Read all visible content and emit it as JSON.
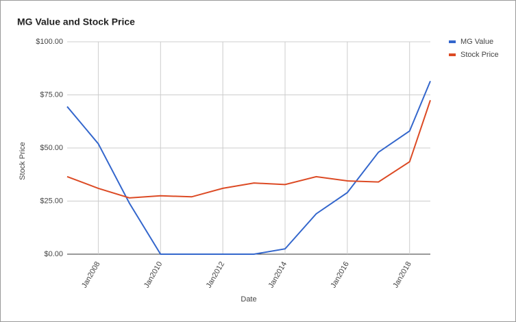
{
  "chart_data": {
    "type": "line",
    "title": "MG Value and Stock Price",
    "x_label": "Date",
    "y_label": "Stock Price",
    "x": [
      "2007-01",
      "2008-01",
      "2009-01",
      "2010-01",
      "2011-01",
      "2012-01",
      "2013-01",
      "2014-01",
      "2015-01",
      "2016-01",
      "2017-01",
      "2018-01",
      "2018-09"
    ],
    "series": [
      {
        "name": "MG Value",
        "color": "#3366cc",
        "values": [
          69.5,
          52,
          24,
          0,
          0,
          0,
          0,
          2.5,
          19,
          29,
          48,
          58,
          81.5
        ]
      },
      {
        "name": "Stock Price",
        "color": "#dc4a24",
        "values": [
          36.5,
          31,
          26.5,
          27.5,
          27,
          31,
          33.5,
          32.8,
          36.5,
          34.5,
          34,
          43.5,
          72.5
        ]
      }
    ],
    "xlim": [
      "2007-01",
      "2018-09"
    ],
    "xticks": [
      {
        "value": "2008-01",
        "label": "Jan2008"
      },
      {
        "value": "2010-01",
        "label": "Jan2010"
      },
      {
        "value": "2012-01",
        "label": "Jan2012"
      },
      {
        "value": "2014-01",
        "label": "Jan2014"
      },
      {
        "value": "2016-01",
        "label": "Jan2016"
      },
      {
        "value": "2018-01",
        "label": "Jan2018"
      }
    ],
    "ylim": [
      0,
      100
    ],
    "yticks": [
      {
        "value": 0,
        "label": "$0.00"
      },
      {
        "value": 25,
        "label": "$25.00"
      },
      {
        "value": 50,
        "label": "$50.00"
      },
      {
        "value": 75,
        "label": "$75.00"
      },
      {
        "value": 100,
        "label": "$100.00"
      }
    ],
    "grid": true,
    "legend": "right"
  }
}
